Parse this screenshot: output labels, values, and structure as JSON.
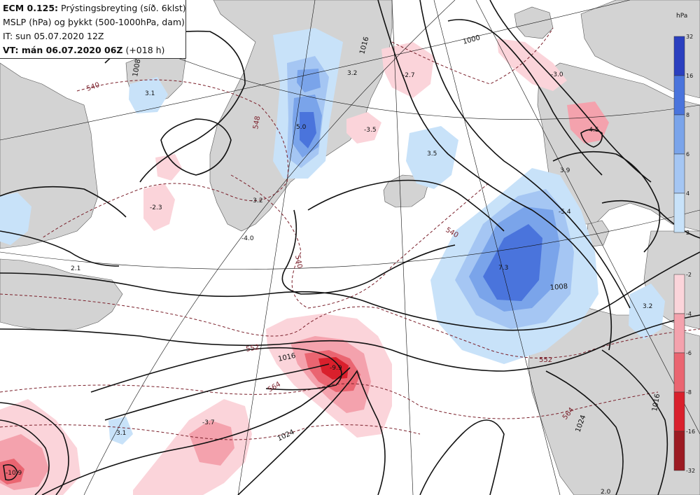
{
  "header": {
    "model": "ECM 0.125:",
    "title_rest": "Prýstingsbreyting (síð. 6klst)",
    "line2": "MSLP (hPa) og þykkt (500-1000hPa, dam)",
    "line3": "IT: sun 05.07.2020 12Z",
    "vt_label": "VT: mán 06.07.2020 06Z",
    "vt_rest": "(+018 h)"
  },
  "legend": {
    "unit": "hPa",
    "rise_ticks": [
      "32",
      "16",
      "8",
      "6",
      "4",
      "2"
    ],
    "rise_colors": [
      "#2a3fbf",
      "#4a74dc",
      "#7aa4ea",
      "#a5c6f3",
      "#c8e2f9"
    ],
    "fall_ticks": [
      "-2",
      "-4",
      "-6",
      "-8",
      "-16",
      "-32"
    ],
    "fall_colors": [
      "#fbd4da",
      "#f4a2ad",
      "#ea6571",
      "#d9202c",
      "#9c1a22"
    ]
  },
  "colors": {
    "land": "#d3d3d3",
    "sea": "#ffffff",
    "isobar": "#111111",
    "thickness": "#7a1f2a"
  },
  "isobar_labels": [
    "1008",
    "1016",
    "1000",
    "1008",
    "1016",
    "1024",
    "1024",
    "1016"
  ],
  "thickness_labels": [
    "540",
    "548",
    "540",
    "540",
    "552",
    "564",
    "552",
    "564"
  ],
  "value_labels": [
    "3.1",
    "-2.3",
    "2.1",
    "-3.2",
    "-4.0",
    "5.0",
    "3.2",
    "-3.5",
    "-2.7",
    "3.5",
    "-3.0",
    "3.9",
    "-5.4",
    "-4.5",
    "7.3",
    "3.2",
    "-9.9",
    "-3.7",
    "3.1",
    "-10.9",
    "2.0"
  ]
}
